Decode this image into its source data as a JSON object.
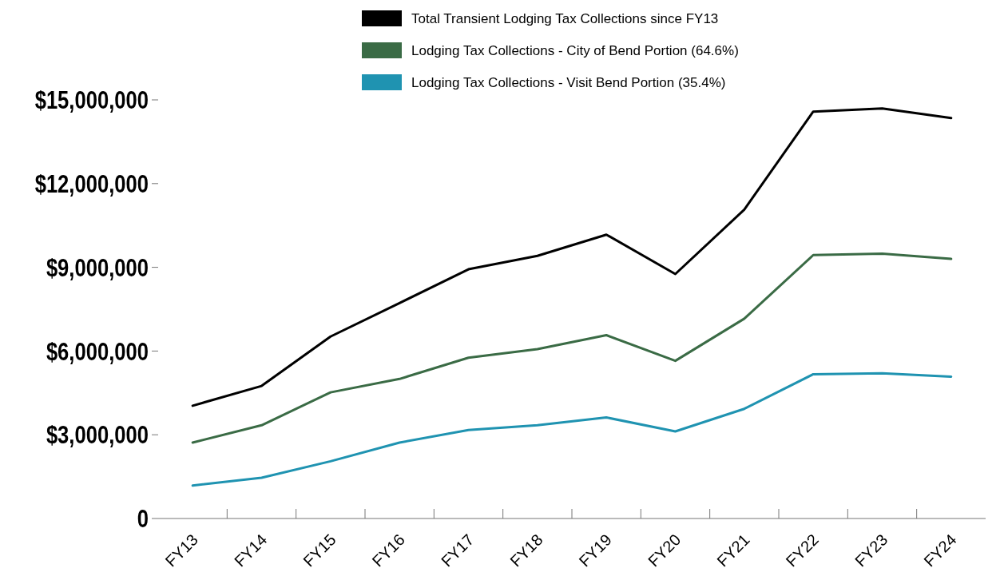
{
  "chart_data": {
    "type": "line",
    "categories": [
      "FY13",
      "FY14",
      "FY15",
      "FY16",
      "FY17",
      "FY18",
      "FY19",
      "FY20",
      "FY21",
      "FY22",
      "FY23",
      "FY24"
    ],
    "series": [
      {
        "name": "Total Transient Lodging Tax Collections since FY13",
        "color": "#000000",
        "values": [
          4040000,
          4750000,
          6520000,
          7720000,
          8930000,
          9410000,
          10170000,
          8760000,
          11070000,
          14580000,
          14690000,
          14350000
        ]
      },
      {
        "name": "Lodging Tax Collections - City of Bend Portion (64.6%)",
        "color": "#3a6b45",
        "values": [
          2720000,
          3340000,
          4520000,
          5000000,
          5760000,
          6070000,
          6570000,
          5650000,
          7160000,
          9440000,
          9490000,
          9300000
        ]
      },
      {
        "name": "Lodging Tax Collections - Visit Bend Portion (35.4%)",
        "color": "#1f93b1",
        "values": [
          1180000,
          1460000,
          2050000,
          2720000,
          3170000,
          3340000,
          3620000,
          3120000,
          3930000,
          5170000,
          5200000,
          5080000
        ]
      }
    ],
    "ylim": [
      0,
      15000000
    ],
    "yticks": [
      {
        "value": 0,
        "label": "0"
      },
      {
        "value": 3000000,
        "label": "$3,000,000"
      },
      {
        "value": 6000000,
        "label": "$6,000,000"
      },
      {
        "value": 9000000,
        "label": "$9,000,000"
      },
      {
        "value": 12000000,
        "label": "$12,000,000"
      },
      {
        "value": 15000000,
        "label": "$15,000,000"
      }
    ],
    "grid": false,
    "legend": "top",
    "marker": "none",
    "line_style": "solid"
  }
}
